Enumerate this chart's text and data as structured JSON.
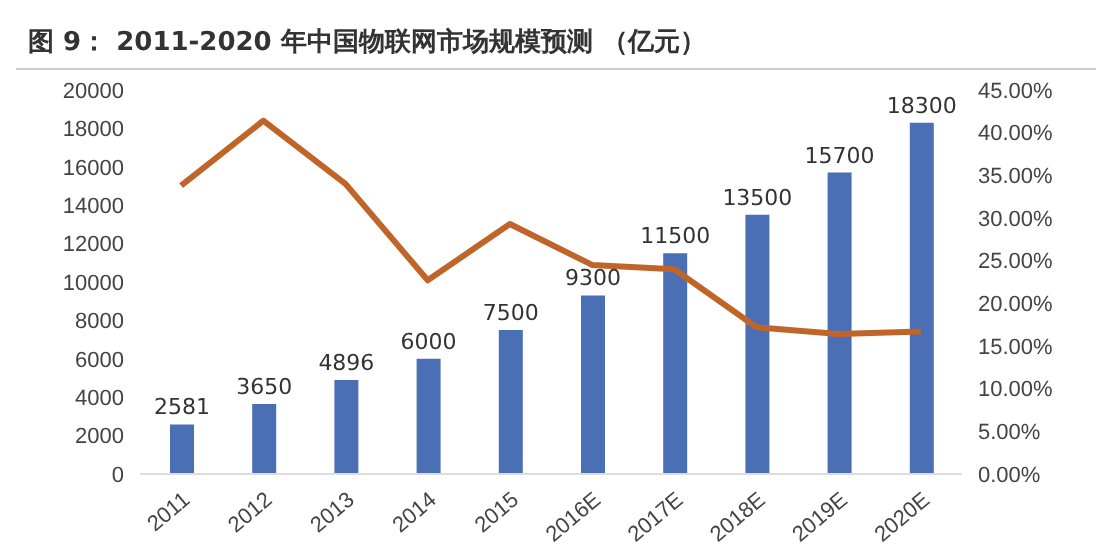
{
  "chart_data": {
    "type": "bar",
    "title": "图 9： 2011-2020 年中国物联网市场规模预测 （亿元）",
    "categories": [
      "2011",
      "2012",
      "2013",
      "2014",
      "2015",
      "2016E",
      "2017E",
      "2018E",
      "2019E",
      "2020E"
    ],
    "series": [
      {
        "color": "#4a6fb5",
        "values": [
          2581,
          3650,
          4896,
          6000,
          7500,
          9300,
          11500,
          13500,
          15700,
          18300
        ],
        "value_labels": [
          "2581",
          "3650",
          "4896",
          "6000",
          "7500",
          "9300",
          "11500",
          "13500",
          "15700",
          "18300"
        ]
      },
      {
        "type": "line",
        "axis": "y2",
        "color": "#c0652a",
        "values": [
          33.8,
          41.4,
          34,
          22.7,
          29.3,
          24.5,
          24,
          17.2,
          16.4,
          16.7
        ]
      }
    ],
    "ylim": [
      0,
      20000
    ],
    "yticks": [
      0,
      2000,
      4000,
      6000,
      8000,
      10000,
      12000,
      14000,
      16000,
      18000,
      20000
    ],
    "y2lim": [
      0,
      45
    ],
    "y2ticks": [
      {
        "value": 0,
        "label": "0.00%"
      },
      {
        "value": 5,
        "label": "5.00%"
      },
      {
        "value": 10,
        "label": "10.00%"
      },
      {
        "value": 15,
        "label": "15.00%"
      },
      {
        "value": 20,
        "label": "20.00%"
      },
      {
        "value": 25,
        "label": "25.00%"
      },
      {
        "value": 30,
        "label": "30.00%"
      },
      {
        "value": 35,
        "label": "35.00%"
      },
      {
        "value": 40,
        "label": "40.00%"
      },
      {
        "value": 45,
        "label": "45.00%"
      }
    ],
    "grid": false,
    "legend": false,
    "marker": "none"
  }
}
